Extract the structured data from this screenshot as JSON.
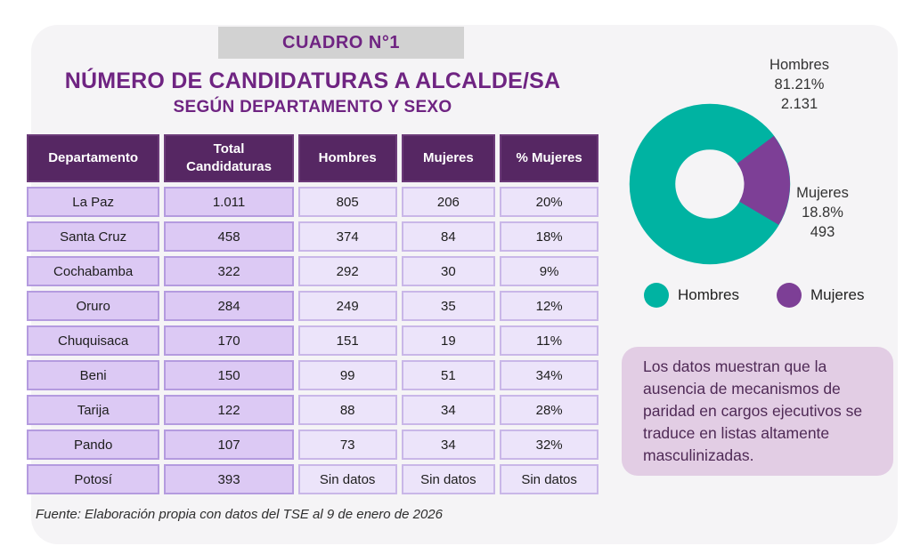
{
  "card": {
    "badge": "CUADRO N°1",
    "title": "NÚMERO DE CANDIDATURAS A ALCALDE/SA",
    "subtitle": "SEGÚN DEPARTAMENTO Y SEXO",
    "source": "Fuente: Elaboración propia con datos del TSE al 9 de enero de 2026"
  },
  "chart_data": [
    {
      "type": "pie",
      "subtype": "donut",
      "categories": [
        "Hombres",
        "Mujeres"
      ],
      "values": [
        2131,
        493
      ],
      "colors": [
        "#00b3a2",
        "#7d3f96"
      ],
      "start_angle_deg": 37,
      "legend_position": "bottom",
      "callout_labels": {
        "hombres": {
          "name": "Hombres",
          "pct": "81.21%",
          "value": "2.131"
        },
        "mujeres": {
          "name": "Mujeres",
          "pct": "18.8%",
          "value": "493"
        }
      }
    },
    {
      "type": "table",
      "headers": [
        "Departamento",
        "Total Candidaturas",
        "Hombres",
        "Mujeres",
        "% Mujeres"
      ],
      "rows": [
        [
          "La Paz",
          "1.011",
          "805",
          "206",
          "20%"
        ],
        [
          "Santa Cruz",
          "458",
          "374",
          "84",
          "18%"
        ],
        [
          "Cochabamba",
          "322",
          "292",
          "30",
          "9%"
        ],
        [
          "Oruro",
          "284",
          "249",
          "35",
          "12%"
        ],
        [
          "Chuquisaca",
          "170",
          "151",
          "19",
          "11%"
        ],
        [
          "Beni",
          "150",
          "99",
          "51",
          "34%"
        ],
        [
          "Tarija",
          "122",
          "88",
          "34",
          "28%"
        ],
        [
          "Pando",
          "107",
          "73",
          "34",
          "32%"
        ],
        [
          "Potosí",
          "393",
          "Sin datos",
          "Sin datos",
          "Sin datos"
        ]
      ]
    }
  ],
  "callout": {
    "text": "Los datos muestran que la ausencia de mecanismos de paridad en cargos ejecutivos se traduce en listas altamente masculinizadas."
  },
  "colors": {
    "card_bg": "#f5f4f6",
    "badge_bg": "#d2d2d2",
    "title_purple": "#6f2482",
    "table_header_bg": "#562763",
    "cell_dark_lavender": "#dcc9f4",
    "cell_light_lavender": "#ece4fa",
    "teal": "#00b3a2",
    "purple": "#7d3f96",
    "callout_bg": "#e2cde4"
  }
}
